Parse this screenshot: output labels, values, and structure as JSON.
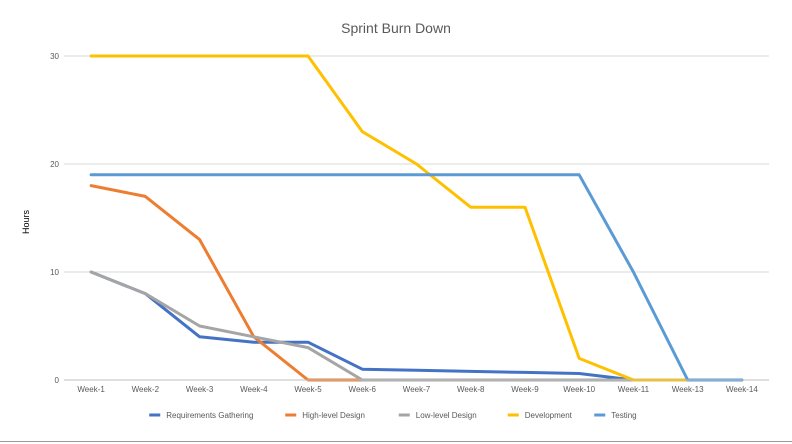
{
  "chart_data": {
    "type": "line",
    "title": "Sprint Burn Down",
    "ylabel": "Hours",
    "xlabel": "",
    "ylim": [
      0,
      30
    ],
    "yticks": [
      0,
      10,
      20,
      30
    ],
    "grid": true,
    "legend_position": "bottom",
    "categories": [
      "Week-1",
      "Week-2",
      "Week-3",
      "Week-4",
      "Week-5",
      "Week-6",
      "Week-7",
      "Week-8",
      "Week-9",
      "Week-10",
      "Week-11",
      "Week-13",
      "Week-14"
    ],
    "series": [
      {
        "name": "Requirements Gathering",
        "color": "#4472C4",
        "values": [
          10,
          8,
          4,
          3.5,
          3.5,
          1,
          0.9,
          0.8,
          0.7,
          0.6,
          0,
          0,
          0
        ]
      },
      {
        "name": "High-level Design",
        "color": "#ED7D31",
        "values": [
          18,
          17,
          13,
          4,
          0,
          0,
          0,
          0,
          0,
          0,
          0,
          0,
          0
        ]
      },
      {
        "name": "Low-level Design",
        "color": "#A5A5A5",
        "values": [
          10,
          8,
          5,
          4,
          3,
          0,
          0,
          0,
          0,
          0,
          0,
          0,
          0
        ]
      },
      {
        "name": "Development",
        "color": "#FFC000",
        "values": [
          30,
          30,
          30,
          30,
          30,
          23,
          20,
          16,
          16,
          2,
          0,
          0,
          0
        ]
      },
      {
        "name": "Testing",
        "color": "#5B9BD5",
        "values": [
          19,
          19,
          19,
          19,
          19,
          19,
          19,
          19,
          19,
          19,
          10,
          0,
          0
        ]
      }
    ]
  }
}
